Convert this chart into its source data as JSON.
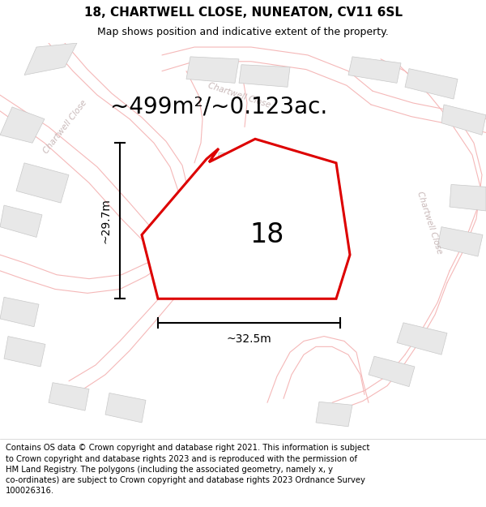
{
  "title": "18, CHARTWELL CLOSE, NUNEATON, CV11 6SL",
  "subtitle": "Map shows position and indicative extent of the property.",
  "area_label": "~499m²/~0.123ac.",
  "plot_number": "18",
  "dim_width": "~32.5m",
  "dim_height": "~29.7m",
  "footer_text": "Contains OS data © Crown copyright and database right 2021. This information is subject to Crown copyright and database rights 2023 and is reproduced with the permission of HM Land Registry. The polygons (including the associated geometry, namely x, y co-ordinates) are subject to Crown copyright and database rights 2023 Ordnance Survey 100026316.",
  "map_bg": "#ffffff",
  "road_line_color": "#f5b8b8",
  "building_fill": "#e8e8e8",
  "building_edge": "#c8c8c8",
  "plot_fill": "none",
  "plot_edge": "#dd0000",
  "dim_color": "#000000",
  "text_color": "#000000",
  "road_label_color": "#c8b8b8",
  "title_fontsize": 11,
  "subtitle_fontsize": 9,
  "area_fontsize": 20,
  "plot_num_fontsize": 24,
  "footer_fontsize": 7.2,
  "dim_fontsize": 10
}
